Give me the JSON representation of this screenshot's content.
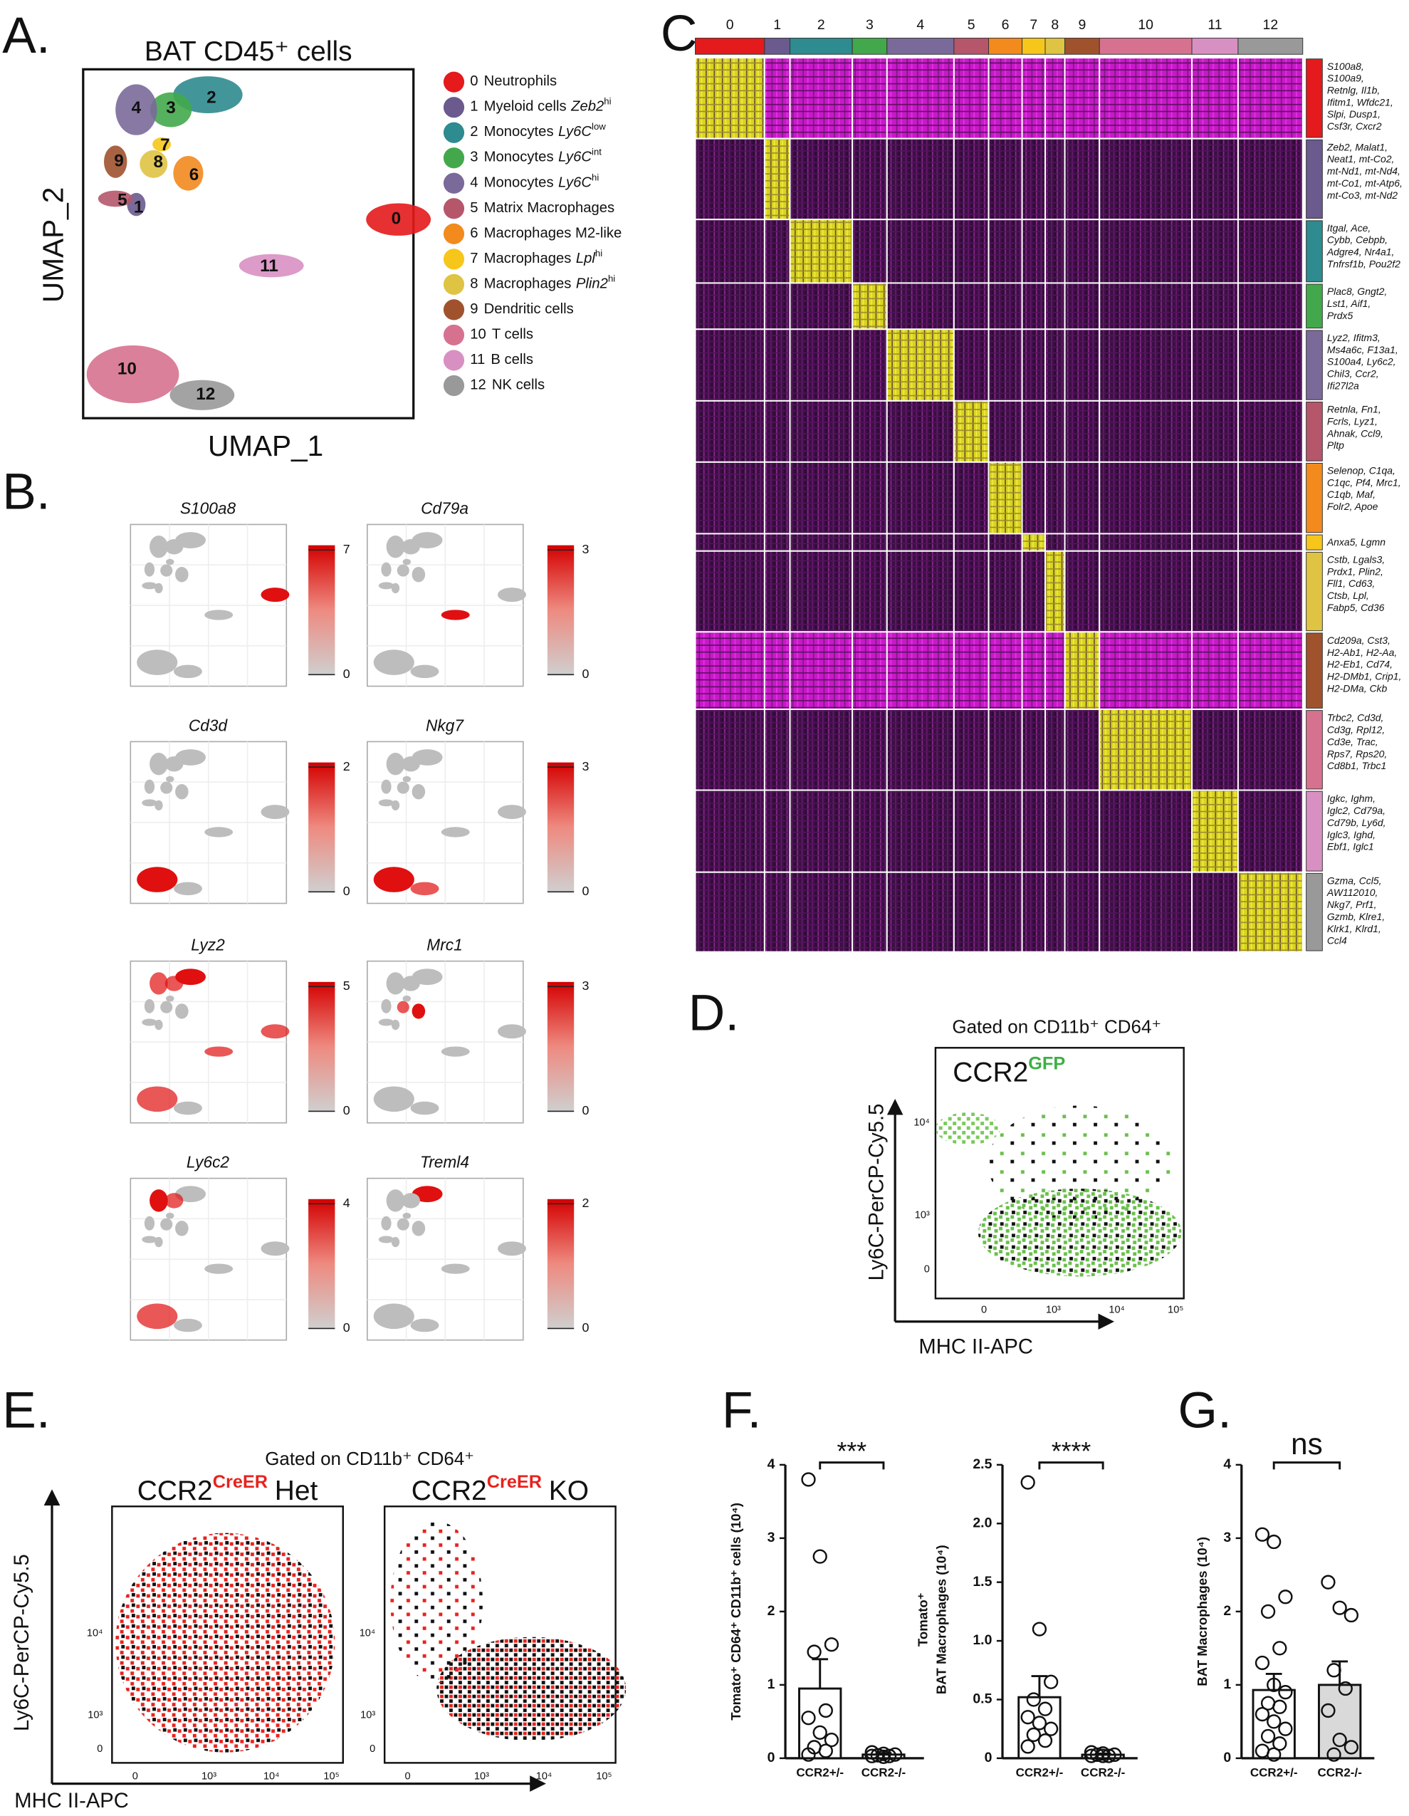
{
  "panels": {
    "A": {
      "letter": "A.",
      "title": "BAT CD45⁺ cells",
      "x_label": "UMAP_1",
      "y_label": "UMAP_2",
      "clusters": [
        {
          "id": "0",
          "name": "Neutrophils",
          "color": "#e41a1c"
        },
        {
          "id": "1",
          "name": "Myeloid cells",
          "gene": "Zeb2",
          "sup": "hi",
          "color": "#6a5a8e"
        },
        {
          "id": "2",
          "name": "Monocytes",
          "gene": "Ly6C",
          "sup": "low",
          "color": "#2e8b8f"
        },
        {
          "id": "3",
          "name": "Monocytes",
          "gene": "Ly6C",
          "sup": "int",
          "color": "#43a84b"
        },
        {
          "id": "4",
          "name": "Monocytes",
          "gene": "Ly6C",
          "sup": "hi",
          "color": "#7a6a9a"
        },
        {
          "id": "5",
          "name": "Matrix Macrophages",
          "color": "#b5566b"
        },
        {
          "id": "6",
          "name": "Macrophages M2-like",
          "color": "#f28a1e"
        },
        {
          "id": "7",
          "name": "Macrophages",
          "gene": "Lpl",
          "sup": "hi",
          "color": "#f6c61a"
        },
        {
          "id": "8",
          "name": "Macrophages",
          "gene": "Plin2",
          "sup": "hi",
          "color": "#dfc343"
        },
        {
          "id": "9",
          "name": "Dendritic cells",
          "color": "#a0522d"
        },
        {
          "id": "10",
          "name": "T cells",
          "color": "#d6728f"
        },
        {
          "id": "11",
          "name": "B cells",
          "color": "#d890c2"
        },
        {
          "id": "12",
          "name": "NK cells",
          "color": "#999999"
        }
      ]
    },
    "B": {
      "letter": "B.",
      "genes": [
        {
          "name": "S100a8",
          "max": 7,
          "min": 0
        },
        {
          "name": "Cd79a",
          "max": 3,
          "min": 0
        },
        {
          "name": "Cd3d",
          "max": 2,
          "min": 0
        },
        {
          "name": "Nkg7",
          "max": 3,
          "min": 0
        },
        {
          "name": "Lyz2",
          "max": 5,
          "min": 0
        },
        {
          "name": "Mrc1",
          "max": 3,
          "min": 0
        },
        {
          "name": "Ly6c2",
          "max": 4,
          "min": 0
        },
        {
          "name": "Treml4",
          "max": 2,
          "min": 0
        }
      ]
    },
    "C": {
      "letter": "C.",
      "gene_lists": [
        [
          "S100a8,",
          "S100a9,",
          "Retnlg, Il1b,",
          "Ifitm1, Wfdc21,",
          "Slpi, Dusp1,",
          "Csf3r, Cxcr2"
        ],
        [
          "Zeb2, Malat1,",
          "Neat1, mt-Co2,",
          "mt-Nd1, mt-Nd4,",
          "mt-Co1, mt-Atp6,",
          "mt-Co3, mt-Nd2"
        ],
        [
          "Itgal, Ace,",
          "Cybb, Cebpb,",
          "Adgre4, Nr4a1,",
          "Tnfrsf1b, Pou2f2"
        ],
        [
          "Plac8, Gngt2,",
          "Lst1, Aif1,",
          "Prdx5"
        ],
        [
          "Lyz2, Ifitm3,",
          "Ms4a6c, F13a1,",
          "S100a4, Ly6c2,",
          "Chil3, Ccr2,",
          "Ifi27l2a"
        ],
        [
          "Retnla, Fn1,",
          "Fcrls, Lyz1,",
          "Ahnak, Ccl9,",
          "Pltp"
        ],
        [
          "Selenop, C1qa,",
          "C1qc, Pf4, Mrc1,",
          "C1qb, Maf,",
          "Folr2, Apoe"
        ],
        [
          "Anxa5, Lgmn"
        ],
        [
          "Cstb, Lgals3,",
          "Prdx1, Plin2,",
          "Fll1, Cd63,",
          "Ctsb, Lpl,",
          "Fabp5, Cd36"
        ],
        [
          "Cd209a, Cst3,",
          "H2-Ab1, H2-Aa,",
          "H2-Eb1, Cd74,",
          "H2-DMb1, Crip1,",
          "H2-DMa, Ckb"
        ],
        [
          "Trbc2, Cd3d,",
          "Cd3g, Rpl12,",
          "Cd3e, Trac,",
          "Rps7, Rps20,",
          "Cd8b1, Trbc1"
        ],
        [
          "Igkc, Ighm,",
          "Iglc2, Cd79a,",
          "Cd79b, Ly6d,",
          "Iglc3, Ighd,",
          "Ebf1, Iglc1"
        ],
        [
          "Gzma, Ccl5,",
          "AW112010,",
          "Nkg7, Prf1,",
          "Gzmb, Klre1,",
          "Klrk1, Klrd1,",
          "Ccl4"
        ]
      ]
    },
    "D": {
      "letter": "D.",
      "gate": "Gated on CD11b⁺ CD64⁺",
      "reporter": "CCR2",
      "reporter_sup": "GFP",
      "y_label": "Ly6C-PerCP-Cy5.5",
      "x_label": "MHC II-APC",
      "y_ticks": [
        "10⁴",
        "10³",
        "0"
      ],
      "x_ticks": [
        "0",
        "10³",
        "10⁴",
        "10⁵"
      ]
    },
    "E": {
      "letter": "E.",
      "gate": "Gated on CD11b⁺ CD64⁺",
      "strain": "CCR2",
      "strain_sup": "CreER",
      "left": "Het",
      "right": "KO",
      "y_label": "Ly6C-PerCP-Cy5.5",
      "x_label": "MHC II-APC",
      "y_ticks": [
        "10⁴",
        "10³",
        "0"
      ],
      "x_ticks": [
        "0",
        "10³",
        "10⁴",
        "10⁵"
      ]
    }
  },
  "chart_data": [
    {
      "type": "bar",
      "panel_letter": "F.",
      "y_label": "Tomato⁺ CD64⁺ CD11b⁺ cells (10⁴)",
      "categories": [
        "CCR2+/-",
        "CCR2-/-"
      ],
      "values": [
        0.95,
        0.05
      ],
      "errors": [
        0.4,
        0.02
      ],
      "points": [
        [
          3.8,
          2.75,
          1.55,
          1.45,
          0.65,
          0.55,
          0.35,
          0.25,
          0.15,
          0.1,
          0.05
        ],
        [
          0.08,
          0.06,
          0.05,
          0.04,
          0.03,
          0.03,
          0.02
        ]
      ],
      "colors": [
        "#ffffff",
        "#ffffff"
      ],
      "significance": "***",
      "ylim": [
        0,
        4
      ],
      "yticks": [
        0,
        1,
        2,
        3,
        4
      ]
    },
    {
      "type": "bar",
      "y_label": [
        "Tomato⁺",
        "BAT Macrophages (10⁴)"
      ],
      "categories": [
        "CCR2+/-",
        "CCR2-/-"
      ],
      "values": [
        0.52,
        0.03
      ],
      "errors": [
        0.18,
        0.01
      ],
      "points": [
        [
          2.35,
          1.1,
          0.65,
          0.5,
          0.42,
          0.35,
          0.3,
          0.25,
          0.2,
          0.15,
          0.1
        ],
        [
          0.05,
          0.04,
          0.03,
          0.03,
          0.02,
          0.02,
          0.02
        ]
      ],
      "colors": [
        "#ffffff",
        "#ffffff"
      ],
      "significance": "****",
      "ylim": [
        0,
        2.5
      ],
      "yticks": [
        0,
        0.5,
        {
          "value": 1,
          "label": "1.0"
        },
        1.5,
        {
          "value": 2,
          "label": "2.0"
        },
        2.5
      ]
    },
    {
      "type": "bar",
      "panel_letter": "G.",
      "y_label": "BAT Macrophages (10⁴)",
      "categories": [
        "CCR2+/-",
        "CCR2-/-"
      ],
      "values": [
        0.93,
        1.0
      ],
      "errors": [
        0.22,
        0.32
      ],
      "points": [
        [
          3.05,
          2.95,
          2.2,
          2.0,
          1.5,
          1.3,
          1.0,
          0.9,
          0.75,
          0.7,
          0.6,
          0.5,
          0.4,
          0.3,
          0.2,
          0.1,
          0.05
        ],
        [
          2.4,
          2.05,
          1.95,
          1.2,
          0.95,
          0.65,
          0.25,
          0.15,
          0.05
        ]
      ],
      "colors": [
        "#ffffff",
        "#d9d9d9"
      ],
      "significance": "ns",
      "ylim": [
        0,
        4
      ],
      "yticks": [
        0,
        1,
        2,
        3,
        4
      ]
    }
  ]
}
